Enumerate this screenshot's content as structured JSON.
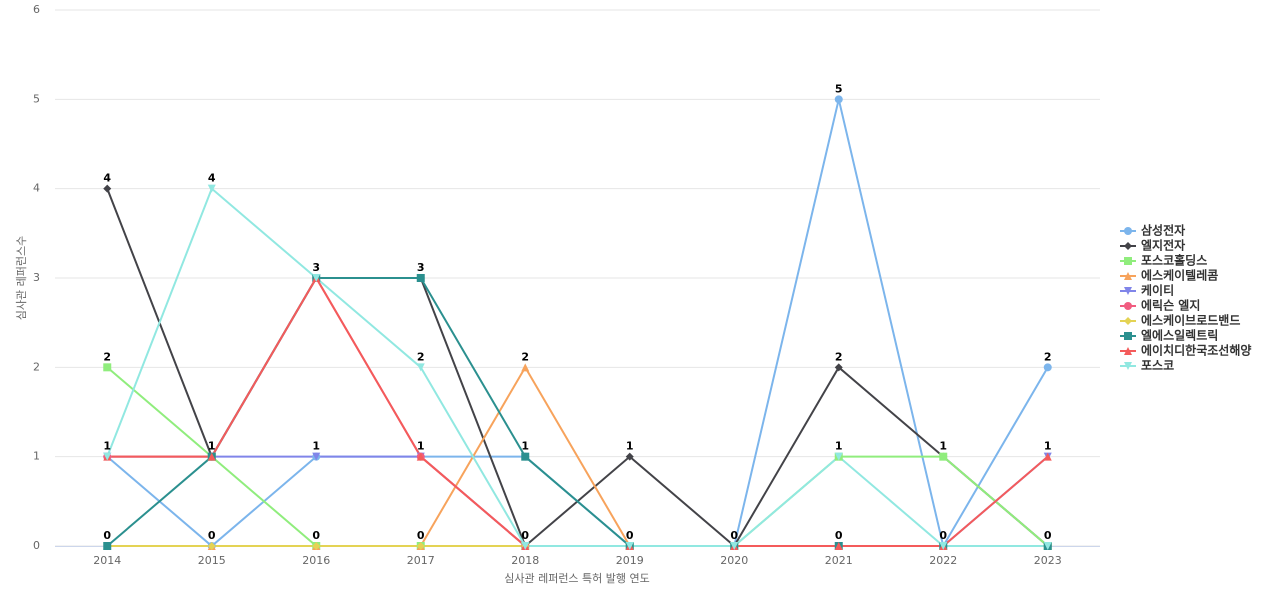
{
  "chart_data": {
    "type": "line",
    "x_label": "심사관 레퍼런스 특허 발행 연도",
    "y_label": "심사관 레퍼런스수",
    "categories": [
      "2014",
      "2015",
      "2016",
      "2017",
      "2018",
      "2019",
      "2020",
      "2021",
      "2022",
      "2023"
    ],
    "ylim": [
      0,
      6
    ],
    "yticks": [
      0,
      1,
      2,
      3,
      4,
      5,
      6
    ],
    "grid": true,
    "legend": "right",
    "series": [
      {
        "name": "삼성전자",
        "color": "#7cb5ec",
        "values": [
          1,
          0,
          1,
          1,
          1,
          0,
          0,
          5,
          0,
          2
        ]
      },
      {
        "name": "엘지전자",
        "color": "#434348",
        "values": [
          4,
          1,
          3,
          3,
          0,
          1,
          0,
          2,
          1,
          0
        ]
      },
      {
        "name": "포스코홀딩스",
        "color": "#90ed7d",
        "values": [
          2,
          1,
          0,
          0,
          0,
          0,
          0,
          1,
          1,
          0
        ]
      },
      {
        "name": "에스케이텔레콤",
        "color": "#f7a35c",
        "values": [
          0,
          0,
          0,
          0,
          2,
          0,
          0,
          0,
          0,
          0
        ]
      },
      {
        "name": "케이티",
        "color": "#8085e9",
        "values": [
          1,
          1,
          1,
          1,
          0,
          0,
          0,
          0,
          0,
          1
        ]
      },
      {
        "name": "에릭슨 엘지",
        "color": "#f15c80",
        "values": [
          1,
          1,
          3,
          1,
          0,
          0,
          0,
          0,
          0,
          0
        ]
      },
      {
        "name": "에스케이브로드밴드",
        "color": "#e4d354",
        "values": [
          0,
          0,
          0,
          0,
          0,
          0,
          0,
          0,
          0,
          0
        ]
      },
      {
        "name": "엘에스일렉트릭",
        "color": "#2b908f",
        "values": [
          0,
          1,
          3,
          3,
          1,
          0,
          0,
          0,
          0,
          0
        ]
      },
      {
        "name": "에이치디한국조선해양",
        "color": "#f45b5b",
        "values": [
          1,
          1,
          3,
          1,
          0,
          0,
          0,
          0,
          0,
          1
        ]
      },
      {
        "name": "포스코",
        "color": "#91e8e1",
        "values": [
          1,
          4,
          3,
          2,
          0,
          0,
          0,
          1,
          0,
          0
        ]
      }
    ]
  }
}
